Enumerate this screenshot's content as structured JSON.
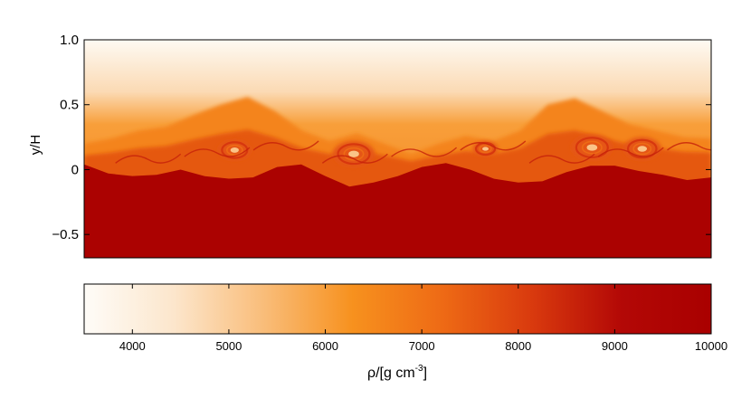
{
  "chart_data": {
    "type": "heatmap",
    "title": "",
    "ylabel": "y/H",
    "xlabel": "",
    "ylim": [
      -0.68,
      1.0
    ],
    "yticks": [
      {
        "value": 1.0,
        "label": "1.0"
      },
      {
        "value": 0.5,
        "label": "0.5"
      },
      {
        "value": 0,
        "label": "0"
      },
      {
        "value": -0.5,
        "label": "−0.5"
      }
    ],
    "colorbar": {
      "label_main": "ρ/[g cm",
      "label_sup": "-3",
      "label_end": "]",
      "range": [
        3500,
        10000
      ],
      "ticks": [
        {
          "value": 4000,
          "label": "4000"
        },
        {
          "value": 5000,
          "label": "5000"
        },
        {
          "value": 6000,
          "label": "6000"
        },
        {
          "value": 7000,
          "label": "7000"
        },
        {
          "value": 8000,
          "label": "8000"
        },
        {
          "value": 9000,
          "label": "9000"
        },
        {
          "value": 10000,
          "label": "10000"
        }
      ],
      "colors": [
        "#fefcf8",
        "#fce6cc",
        "#f9bd7a",
        "#f7911e",
        "#ee6a15",
        "#d93a0e",
        "#b30806",
        "#a90000"
      ]
    },
    "field": {
      "upper_density_top": 3600,
      "upper_density_interface": 6800,
      "lower_density": 9800,
      "interface_y": [
        0.04,
        -0.02,
        -0.05,
        -0.03,
        0.0,
        -0.04,
        -0.07,
        -0.05,
        0.02,
        0.05,
        -0.05,
        -0.12,
        -0.1,
        -0.04,
        0.02,
        0.06,
        0.0,
        -0.06,
        -0.1,
        -0.08,
        -0.02,
        0.04,
        0.03,
        0.0,
        -0.04,
        -0.07,
        -0.06
      ],
      "mixing_top_y": [
        0.2,
        0.24,
        0.3,
        0.33,
        0.42,
        0.5,
        0.56,
        0.45,
        0.3,
        0.22,
        0.28,
        0.2,
        0.12,
        0.2,
        0.26,
        0.22,
        0.3,
        0.5,
        0.55,
        0.45,
        0.35,
        0.3,
        0.25,
        0.24
      ],
      "vortices": [
        {
          "x": 0.43,
          "y": 0.12,
          "r": 0.1
        },
        {
          "x": 0.24,
          "y": 0.15,
          "r": 0.08
        },
        {
          "x": 0.81,
          "y": 0.17,
          "r": 0.1
        },
        {
          "x": 0.89,
          "y": 0.16,
          "r": 0.09
        },
        {
          "x": 0.64,
          "y": 0.16,
          "r": 0.06
        }
      ]
    }
  }
}
